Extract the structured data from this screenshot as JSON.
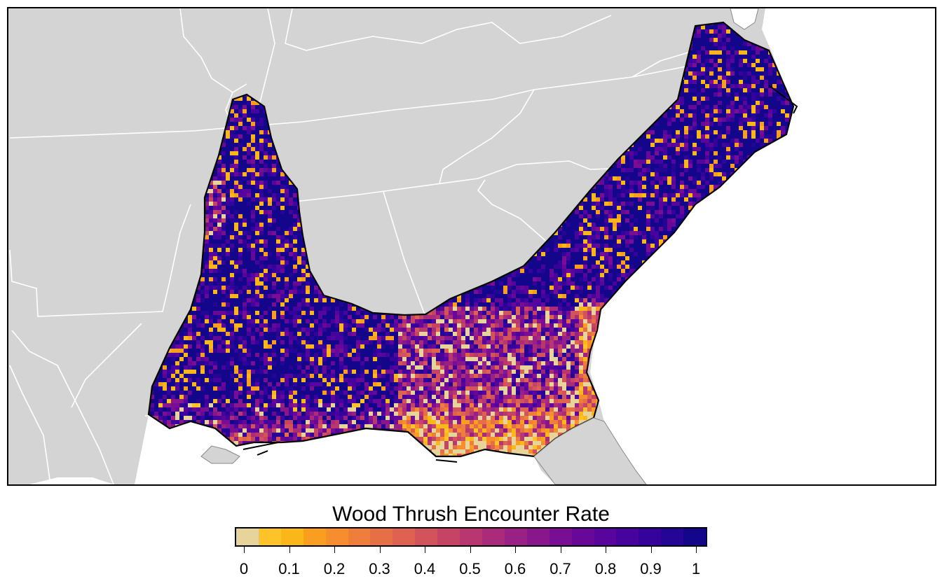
{
  "legend": {
    "title": "Wood Thrush Encounter Rate",
    "tick_labels": [
      "0",
      "0.1",
      "0.2",
      "0.3",
      "0.4",
      "0.5",
      "0.6",
      "0.7",
      "0.8",
      "0.9",
      "1"
    ],
    "colors": [
      "#e6d49a",
      "#fdc328",
      "#fbb61a",
      "#f99e21",
      "#f68d2e",
      "#ef7e3c",
      "#e76f46",
      "#de6151",
      "#d3535c",
      "#c54466",
      "#b83770",
      "#a92b7a",
      "#992084",
      "#8a168c",
      "#790d93",
      "#680898",
      "#57059c",
      "#46039e",
      "#35039c",
      "#250596",
      "#14068a"
    ]
  },
  "map": {
    "background_land_color": "#d4d4d4",
    "water_color": "#ffffff",
    "state_border_color": "#ffffff",
    "region_outline_color": "#000000"
  }
}
